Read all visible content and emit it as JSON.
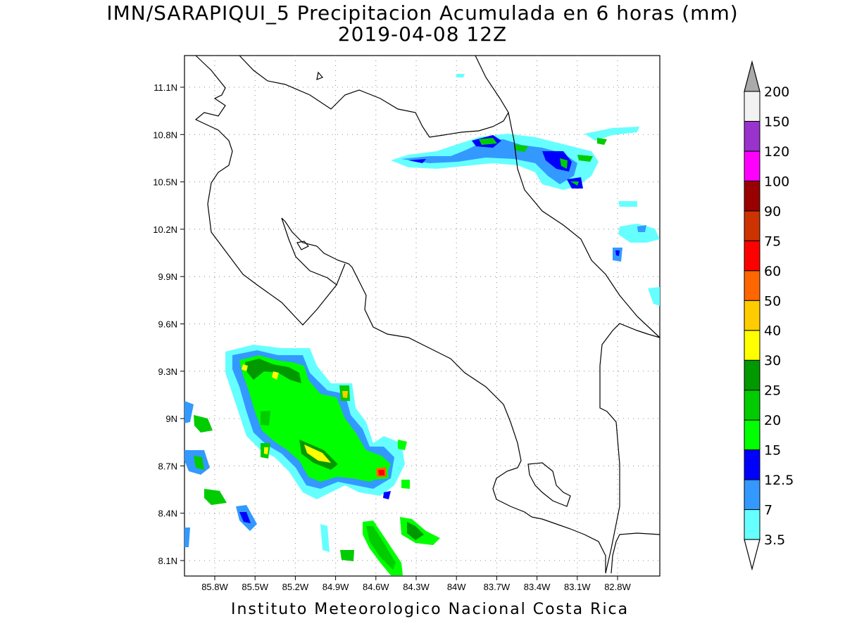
{
  "title": {
    "line1": "IMN/SARAPIQUI_5 Precipitacion Acumulada en 6 horas (mm)",
    "line2": "2019-04-08 12Z"
  },
  "footer": "Instituto Meteorologico Nacional Costa Rica",
  "map": {
    "lat_labels": [
      "11.1N",
      "10.8N",
      "10.5N",
      "10.2N",
      "9.9N",
      "9.6N",
      "9.3N",
      "9N",
      "8.7N",
      "8.4N",
      "8.1N"
    ],
    "lon_labels": [
      "85.8W",
      "85.5W",
      "85.2W",
      "84.9W",
      "84.6W",
      "84.3W",
      "84W",
      "83.7W",
      "83.4W",
      "83.1W",
      "82.8W"
    ],
    "grid": "dotted"
  },
  "colorbar": {
    "levels": [
      "3.5",
      "7",
      "12.5",
      "15",
      "20",
      "25",
      "30",
      "40",
      "50",
      "60",
      "75",
      "90",
      "100",
      "120",
      "150",
      "200"
    ],
    "colors": [
      "#66ffff",
      "#3399ff",
      "#0000ff",
      "#00ff00",
      "#00cc00",
      "#009900",
      "#ffff00",
      "#ffcc00",
      "#ff6600",
      "#ff0000",
      "#cc3300",
      "#990000",
      "#ff00ff",
      "#9933cc",
      "#f2f2f2",
      "#aaaaaa"
    ]
  }
}
